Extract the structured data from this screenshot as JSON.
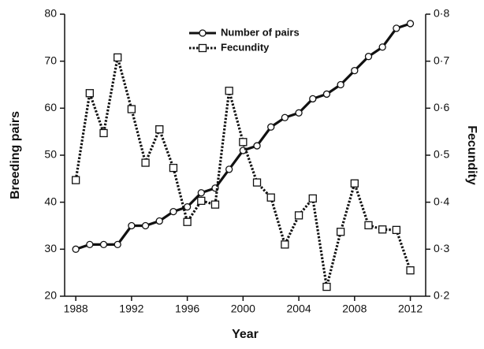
{
  "chart_data": {
    "type": "line",
    "x_label": "Year",
    "y_label": "Breeding pairs",
    "y2_label": "Fecundity",
    "x": [
      1988,
      1989,
      1990,
      1991,
      1992,
      1993,
      1994,
      1995,
      1996,
      1997,
      1998,
      1999,
      2000,
      2001,
      2002,
      2003,
      2004,
      2005,
      2006,
      2007,
      2008,
      2009,
      2010,
      2011,
      2012
    ],
    "series": [
      {
        "name": "Number of pairs",
        "color": "#111111",
        "marker": "circle",
        "dash": "solid",
        "values": [
          30,
          31,
          31,
          31,
          35,
          35,
          36,
          38,
          39,
          42,
          43,
          47,
          51,
          52,
          56,
          58,
          59,
          62,
          63,
          65,
          68,
          71,
          73,
          77,
          78
        ]
      },
      {
        "name": "Fecundity",
        "color": "#111111",
        "marker": "square",
        "dash": "dotted",
        "axis": "y2",
        "values": [
          0.447,
          0.632,
          0.547,
          0.708,
          0.598,
          0.484,
          0.555,
          0.473,
          0.358,
          0.403,
          0.395,
          0.637,
          0.528,
          0.442,
          0.41,
          0.31,
          0.372,
          0.408,
          0.22,
          0.337,
          0.44,
          0.351,
          0.342,
          0.341,
          0.255
        ]
      }
    ],
    "xlim": [
      1987.2,
      2013.1
    ],
    "xticks": [
      1988,
      1992,
      1996,
      2000,
      2004,
      2008,
      2012
    ],
    "ylim": [
      20,
      80
    ],
    "yticks": [
      20,
      30,
      40,
      50,
      60,
      70,
      80
    ],
    "y2lim": [
      0.2,
      0.8
    ],
    "y2ticks": [
      {
        "value": 0.2,
        "label": "0·2"
      },
      {
        "value": 0.3,
        "label": "0·3"
      },
      {
        "value": 0.4,
        "label": "0·4"
      },
      {
        "value": 0.5,
        "label": "0·5"
      },
      {
        "value": 0.6,
        "label": "0·6"
      },
      {
        "value": 0.7,
        "label": "0·7"
      },
      {
        "value": 0.8,
        "label": "0·8"
      }
    ],
    "grid": false,
    "legend": "top"
  }
}
